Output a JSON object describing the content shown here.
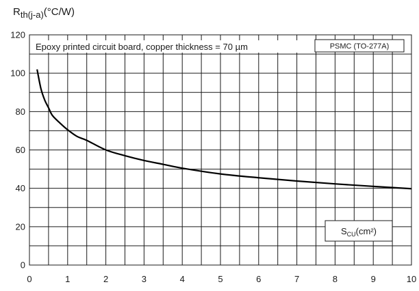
{
  "chart_data": {
    "type": "line",
    "title": "",
    "ylabel_main": "R",
    "ylabel_sub": "th(j-a)",
    "ylabel_unit": "(°C/W)",
    "xlabel_main": "S",
    "xlabel_sub": "CU",
    "xlabel_unit": "(cm²)",
    "xlim": [
      0,
      10
    ],
    "ylim": [
      0,
      120
    ],
    "grid": true,
    "x_ticks": [
      "0",
      "1",
      "2",
      "3",
      "4",
      "5",
      "6",
      "7",
      "8",
      "9",
      "10"
    ],
    "y_ticks": [
      "0",
      "20",
      "40",
      "60",
      "80",
      "100",
      "120"
    ],
    "annotation_main": "Epoxy printed circuit board, copper thickness = 70 µm",
    "annotation_package": "PSMC (TO-277A)",
    "series": [
      {
        "x": [
          0.2,
          0.3,
          0.4,
          0.5,
          0.6,
          0.8,
          1.0,
          1.25,
          1.5,
          2.0,
          2.5,
          3.0,
          3.5,
          4.0,
          5.0,
          6.0,
          7.0,
          8.0,
          9.0,
          10.0
        ],
        "y": [
          102,
          92,
          86,
          82,
          78,
          74,
          70.5,
          67,
          65,
          60,
          57,
          54.5,
          52.5,
          50.5,
          47.5,
          45.5,
          43.8,
          42.3,
          41,
          39.8
        ]
      }
    ]
  }
}
